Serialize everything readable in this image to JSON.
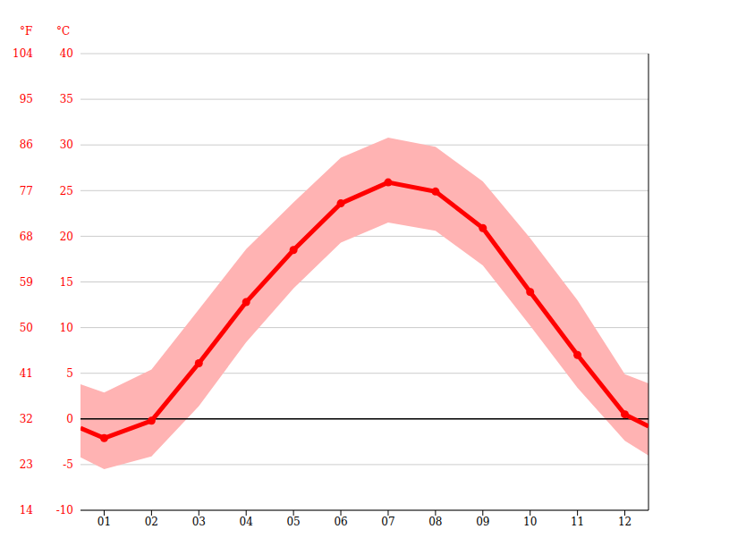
{
  "chart_data": {
    "type": "line",
    "y_label": "°C",
    "y2_label": "°F",
    "x": [
      0.5,
      1,
      2,
      3,
      4,
      5,
      6,
      7,
      8,
      9,
      10,
      11,
      12,
      12.5
    ],
    "xlim": [
      0.5,
      12.5
    ],
    "xticks": [
      {
        "value": 1,
        "label": "01"
      },
      {
        "value": 2,
        "label": "02"
      },
      {
        "value": 3,
        "label": "03"
      },
      {
        "value": 4,
        "label": "04"
      },
      {
        "value": 5,
        "label": "05"
      },
      {
        "value": 6,
        "label": "06"
      },
      {
        "value": 7,
        "label": "07"
      },
      {
        "value": 8,
        "label": "08"
      },
      {
        "value": 9,
        "label": "09"
      },
      {
        "value": 10,
        "label": "10"
      },
      {
        "value": 11,
        "label": "11"
      },
      {
        "value": 12,
        "label": "12"
      }
    ],
    "ylim": [
      -10,
      40
    ],
    "yticks": [
      -10,
      -5,
      0,
      5,
      10,
      15,
      20,
      25,
      30,
      35,
      40
    ],
    "y2lim": [
      14,
      104
    ],
    "y2ticks": [
      14,
      23,
      32,
      41,
      50,
      59,
      68,
      77,
      86,
      95,
      104
    ],
    "grid": true,
    "series": [
      {
        "values": [
          -1.0,
          -2.1,
          -0.2,
          6.1,
          12.8,
          18.5,
          23.6,
          25.9,
          24.9,
          20.9,
          13.9,
          7.0,
          0.5,
          -0.8
        ],
        "color": "#ff0000",
        "marker": "circle"
      }
    ],
    "band": {
      "lower": [
        -4.2,
        -5.5,
        -4.1,
        1.4,
        8.4,
        14.3,
        19.3,
        21.5,
        20.6,
        16.8,
        10.2,
        3.4,
        -2.4,
        -4.0
      ],
      "upper": [
        3.8,
        2.9,
        5.4,
        12.0,
        18.6,
        23.7,
        28.6,
        30.8,
        29.8,
        26.0,
        19.8,
        13.0,
        4.9,
        3.9
      ],
      "color": "#ffb3b3"
    }
  }
}
